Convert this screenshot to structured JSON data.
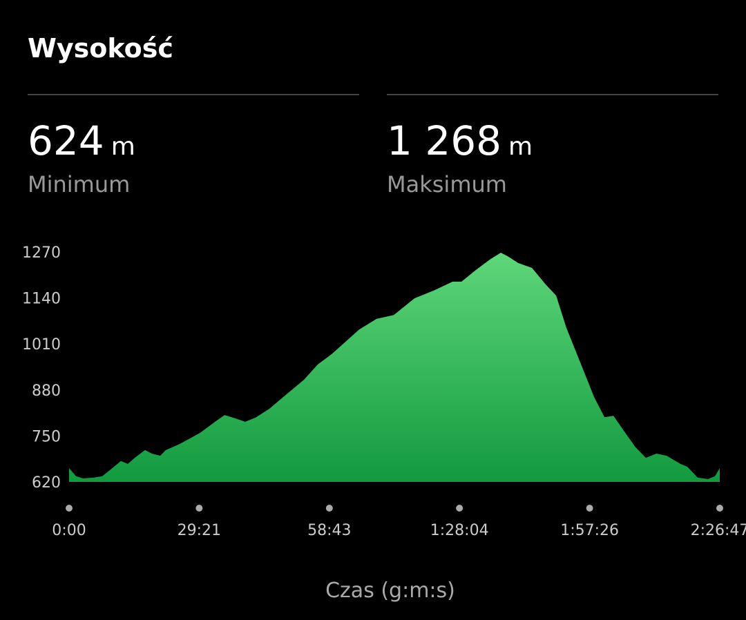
{
  "header": {
    "title": "Wysokość"
  },
  "stats": [
    {
      "value": "624",
      "unit": "m",
      "label": "Minimum"
    },
    {
      "value": "1 268",
      "unit": "m",
      "label": "Maksimum"
    }
  ],
  "chart_data": {
    "type": "area",
    "x_label": "Czas (g:m:s)",
    "x": [
      0,
      94,
      187,
      327,
      449,
      561,
      701,
      795,
      888,
      1028,
      1122,
      1234,
      1309,
      1496,
      1776,
      1963,
      2104,
      2244,
      2384,
      2525,
      2712,
      2899,
      3179,
      3366,
      3553,
      3740,
      3927,
      4161,
      4395,
      4675,
      4956,
      5189,
      5311,
      5517,
      5704,
      5844,
      5937,
      6078,
      6265,
      6452,
      6592,
      6732,
      6919,
      7106,
      7247,
      7368,
      7527,
      7667,
      7807,
      7948,
      8088,
      8275,
      8368,
      8509,
      8649,
      8742,
      8807
    ],
    "values": [
      659,
      636,
      630,
      632,
      636,
      655,
      679,
      671,
      688,
      710,
      700,
      694,
      710,
      727,
      759,
      788,
      809,
      800,
      790,
      802,
      827,
      860,
      909,
      952,
      981,
      1016,
      1051,
      1081,
      1092,
      1139,
      1163,
      1186,
      1186,
      1221,
      1250,
      1268,
      1258,
      1239,
      1225,
      1178,
      1147,
      1055,
      958,
      860,
      803,
      807,
      759,
      718,
      688,
      700,
      694,
      671,
      663,
      632,
      628,
      636,
      659
    ],
    "color_top": "#5fd67a",
    "color_bottom": "#129a3f",
    "xlim": [
      0,
      8807
    ],
    "xticks": [
      {
        "value": 0,
        "label": "0:00"
      },
      {
        "value": 1761,
        "label": "29:21"
      },
      {
        "value": 3523,
        "label": "58:43"
      },
      {
        "value": 5284,
        "label": "1:28:04"
      },
      {
        "value": 7046,
        "label": "1:57:26"
      },
      {
        "value": 8807,
        "label": "2:26:47"
      }
    ],
    "ylim": [
      620,
      1270
    ],
    "yticks": [
      620,
      750,
      880,
      1010,
      1140,
      1270
    ],
    "grid": false
  }
}
